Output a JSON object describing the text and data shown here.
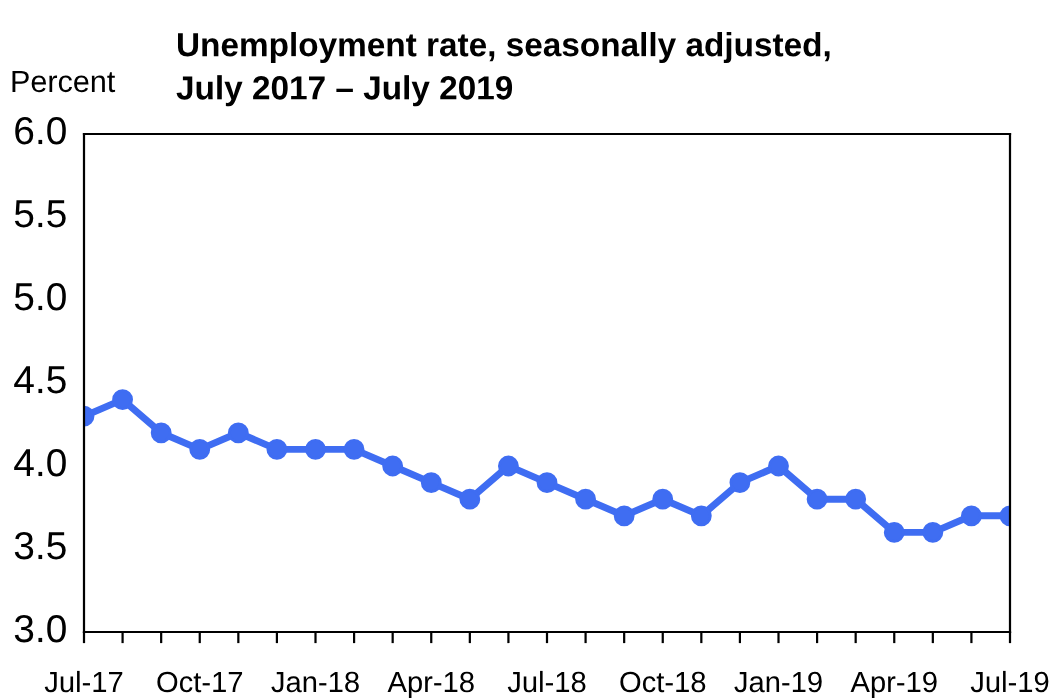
{
  "chart_data": {
    "type": "line",
    "title": "Unemployment rate, seasonally adjusted,\nJuly 2017 – July 2019",
    "ylabel": "Percent",
    "categories": [
      "Jul-17",
      null,
      null,
      "Oct-17",
      null,
      null,
      "Jan-18",
      null,
      null,
      "Apr-18",
      null,
      null,
      "Jul-18",
      null,
      null,
      "Oct-18",
      null,
      null,
      "Jan-19",
      null,
      null,
      "Apr-19",
      null,
      null,
      "Jul-19"
    ],
    "series": [
      {
        "color": "#3f6df2",
        "values": [
          4.3,
          4.4,
          4.2,
          4.1,
          4.2,
          4.1,
          4.1,
          4.1,
          4.0,
          3.9,
          3.8,
          4.0,
          3.9,
          3.8,
          3.7,
          3.8,
          3.7,
          3.9,
          4.0,
          3.8,
          3.8,
          3.6,
          3.6,
          3.7,
          3.7
        ]
      }
    ],
    "ylim": [
      3.0,
      6.0
    ],
    "yticks": [
      {
        "value": 3.0,
        "label": "3.0"
      },
      {
        "value": 3.5,
        "label": "3.5"
      },
      {
        "value": 4.0,
        "label": "4.0"
      },
      {
        "value": 4.5,
        "label": "4.5"
      },
      {
        "value": 5.0,
        "label": "5.0"
      },
      {
        "value": 5.5,
        "label": "5.5"
      },
      {
        "value": 6.0,
        "label": "6.0"
      }
    ],
    "grid": false,
    "marker": "circle",
    "line_style": "solid"
  }
}
